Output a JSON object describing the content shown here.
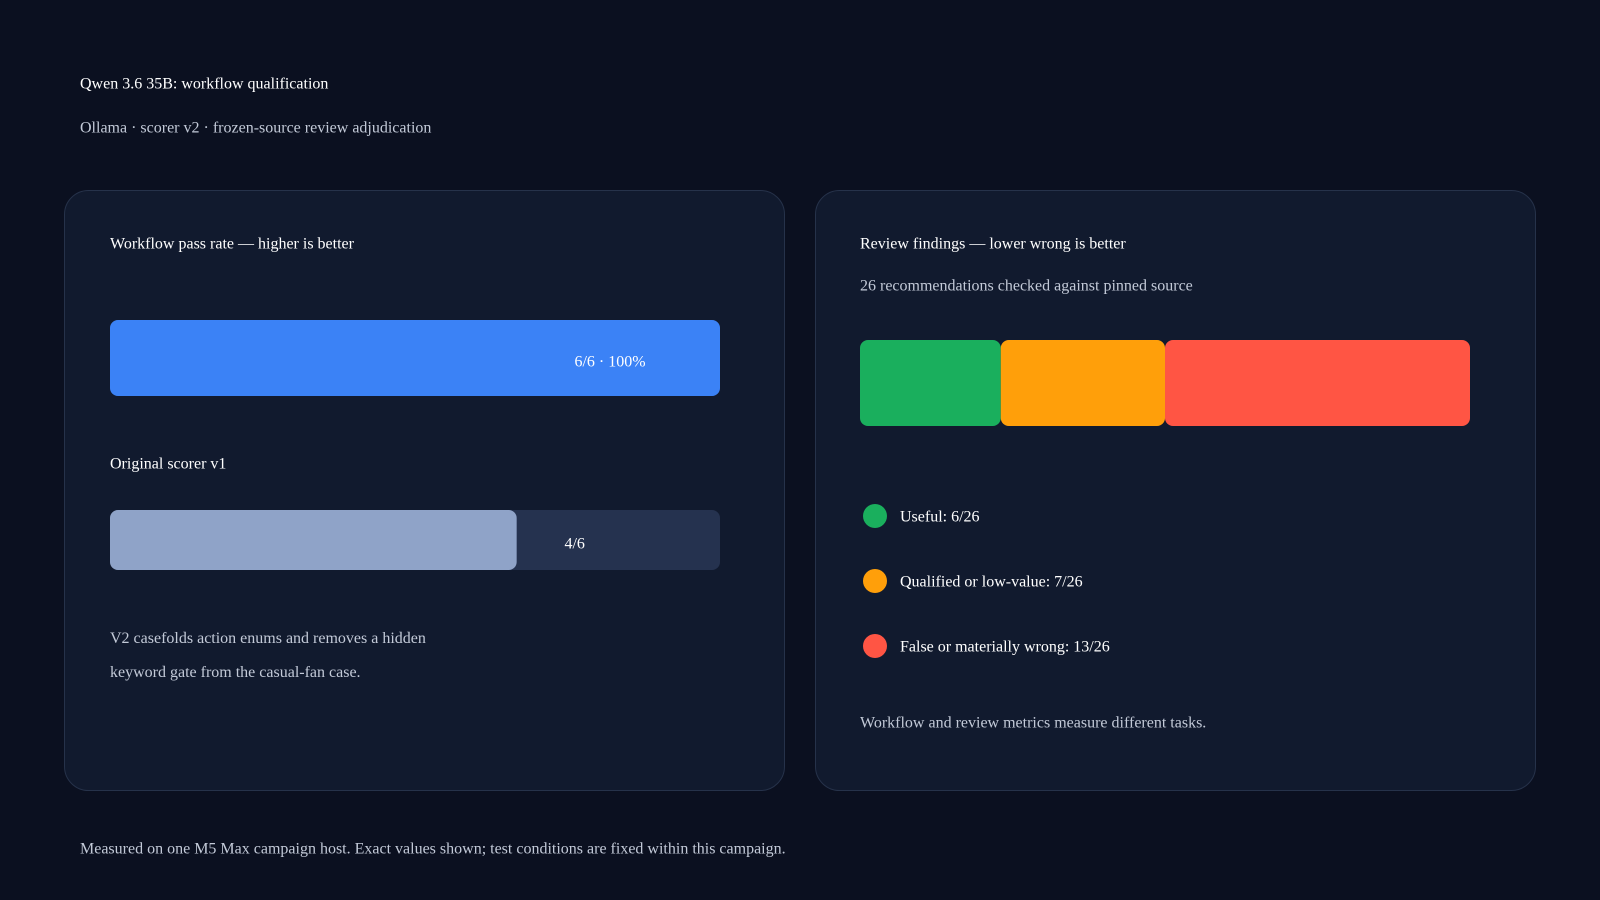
{
  "title": "Qwen 3.6 35B: workflow qualification",
  "subtitle": "Ollama · scorer v2 · frozen-source review adjudication",
  "footer": "Measured on one M5 Max campaign host. Exact values shown; test conditions are fixed within this campaign.",
  "chart_data": [
    {
      "type": "progress-bar",
      "title": "Workflow pass rate — higher is better",
      "categories": [
        null,
        "Original scorer v1"
      ],
      "values": [
        6,
        4
      ],
      "value_labels": [
        "6/6 · 100%",
        "4/6"
      ],
      "colors": [
        "#3b82f6",
        "#8fa3c8"
      ],
      "xlim": [
        0,
        6
      ],
      "note": "V2 casefolds action enums and removes a hidden keyword gate from the casual-fan case."
    },
    {
      "type": "stacked-bar",
      "title": "Review findings — lower wrong is better",
      "subtitle": "26 recommendations checked against pinned source",
      "series": [
        {
          "name": "Useful: 6/26",
          "color": "#1aaf5d",
          "values": [
            6
          ]
        },
        {
          "name": "Qualified or low-value: 7/26",
          "color": "#ff9f0a",
          "values": [
            7
          ]
        },
        {
          "name": "False or materially wrong: 13/26",
          "color": "#ff5544",
          "values": [
            13
          ]
        }
      ],
      "xlim": [
        0,
        26
      ],
      "note": "Workflow and review metrics measure different tasks."
    }
  ]
}
